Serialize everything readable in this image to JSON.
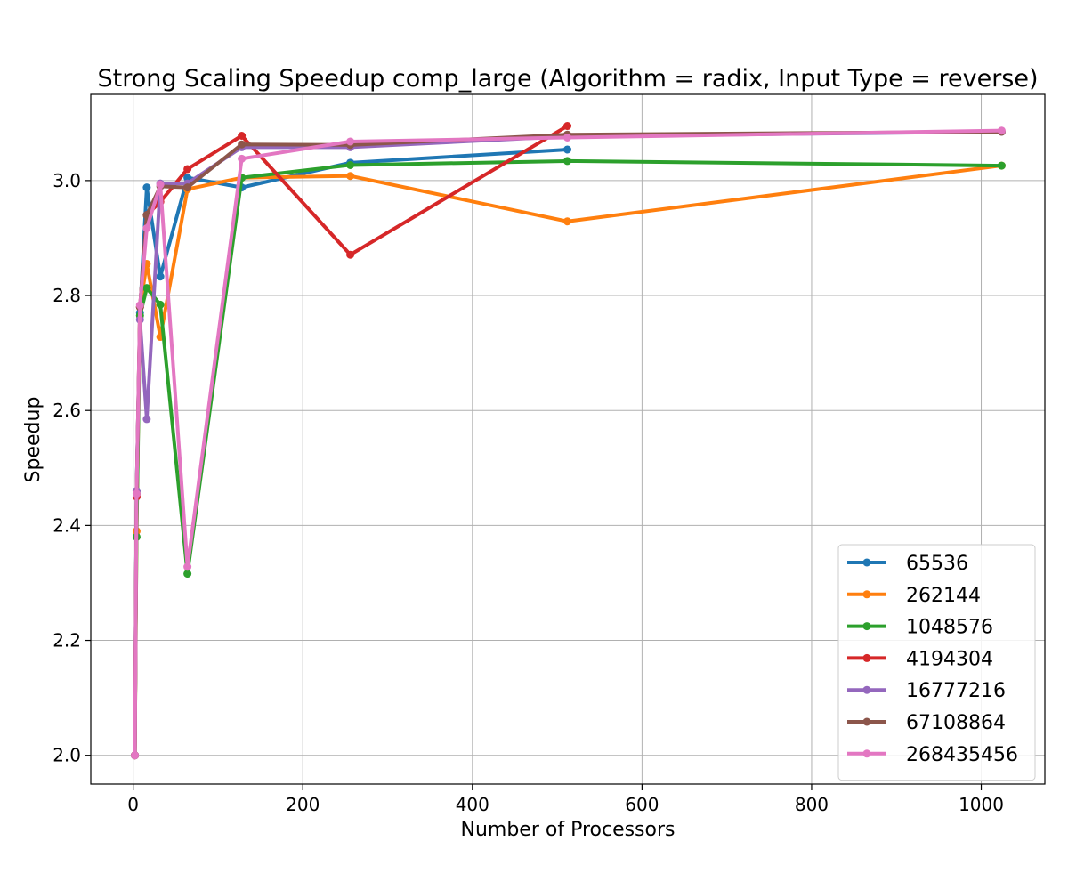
{
  "chart_data": {
    "type": "line",
    "title": "Strong Scaling Speedup comp_large (Algorithm = radix, Input Type = reverse)",
    "xlabel": "Number of Processors",
    "ylabel": "Speedup",
    "xlim": [
      -50,
      1075
    ],
    "ylim": [
      1.95,
      3.15
    ],
    "xticks": [
      0,
      200,
      400,
      600,
      800,
      1000
    ],
    "yticks": [
      2.0,
      2.2,
      2.4,
      2.6,
      2.8,
      3.0
    ],
    "xtick_labels": [
      "0",
      "200",
      "400",
      "600",
      "800",
      "1000"
    ],
    "ytick_labels": [
      "2.0",
      "2.2",
      "2.4",
      "2.6",
      "2.8",
      "3.0"
    ],
    "grid": true,
    "legend_position": "bottom-right",
    "series": [
      {
        "name": "65536",
        "color": "#1f77b4",
        "x": [
          2,
          4,
          8,
          16,
          32,
          64,
          128,
          256,
          512
        ],
        "y": [
          2.0,
          2.46,
          2.77,
          2.988,
          2.833,
          3.005,
          2.988,
          3.031,
          3.054
        ]
      },
      {
        "name": "262144",
        "color": "#ff7f0e",
        "x": [
          2,
          4,
          8,
          16,
          32,
          64,
          128,
          256,
          512,
          1024
        ],
        "y": [
          2.0,
          2.39,
          2.78,
          2.855,
          2.728,
          2.985,
          3.005,
          3.008,
          2.929,
          3.026
        ]
      },
      {
        "name": "1048576",
        "color": "#2ca02c",
        "x": [
          2,
          4,
          8,
          16,
          32,
          64,
          128,
          256,
          512,
          1024
        ],
        "y": [
          2.0,
          2.38,
          2.765,
          2.813,
          2.784,
          2.316,
          3.005,
          3.027,
          3.034,
          3.026
        ]
      },
      {
        "name": "4194304",
        "color": "#d62728",
        "x": [
          2,
          4,
          8,
          16,
          32,
          64,
          128,
          256,
          512
        ],
        "y": [
          2.0,
          2.45,
          2.78,
          2.94,
          2.963,
          3.02,
          3.078,
          2.871,
          3.095
        ]
      },
      {
        "name": "16777216",
        "color": "#9467bd",
        "x": [
          2,
          4,
          8,
          16,
          32,
          64,
          128,
          256,
          512,
          1024
        ],
        "y": [
          2.0,
          2.46,
          2.758,
          2.585,
          2.995,
          2.995,
          3.058,
          3.058,
          3.077,
          3.085
        ]
      },
      {
        "name": "67108864",
        "color": "#8c564b",
        "x": [
          2,
          4,
          8,
          16,
          32,
          64,
          128,
          256,
          512,
          1024
        ],
        "y": [
          2.0,
          2.455,
          2.78,
          2.94,
          2.99,
          2.988,
          3.063,
          3.062,
          3.08,
          3.085
        ]
      },
      {
        "name": "268435456",
        "color": "#e377c2",
        "x": [
          2,
          4,
          8,
          16,
          32,
          64,
          128,
          256,
          512,
          1024
        ],
        "y": [
          2.0,
          2.455,
          2.783,
          2.917,
          2.993,
          2.328,
          3.038,
          3.068,
          3.075,
          3.087
        ]
      }
    ]
  }
}
